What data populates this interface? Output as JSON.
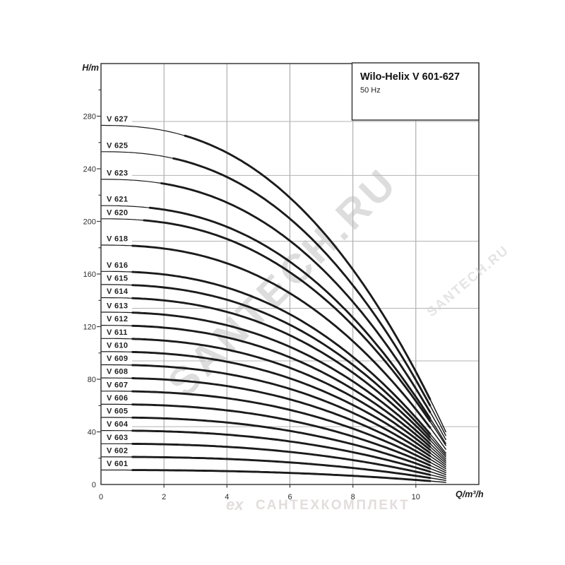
{
  "colors": {
    "curve": "#1b1b1b",
    "grid": "#9e9e9e",
    "reference_line": "#b3b3b3",
    "border": "#3a3a3a",
    "tick": "#3a3a3a",
    "watermark_large": "#bdbdbd",
    "watermark_small": "#cfcfcf",
    "watermark_bottom": "#ddd8d6"
  },
  "watermarks": {
    "large": "SANTECH.RU",
    "small": "SANTECH.RU",
    "bottom_logo": "ex",
    "bottom_text": "САНТЕХКОМПЛЕКТ"
  },
  "chart_data": {
    "type": "line",
    "title": "Wilo-Helix V 601-627",
    "subtitle": "50 Hz",
    "xlabel": "Q/m³/h",
    "ylabel": "H/m",
    "xlim": [
      0,
      12
    ],
    "ylim": [
      0,
      320
    ],
    "x_ticks": [
      0,
      2,
      4,
      6,
      8,
      10
    ],
    "y_ticks": [
      0,
      40,
      80,
      120,
      160,
      200,
      240,
      280
    ],
    "y_minor_tick_step": 20,
    "grid": "vertical gray gridlines at x ticks; thin gray horizontal reference lines at every labeled-with-leader curve",
    "legend_position": "labels at left end of each curve",
    "curve_model": {
      "q_cut": 11.7,
      "exp": 2.4,
      "q_end": 10.95,
      "q_thick_start_base": 1.0,
      "q_thick_end": 10.45
    },
    "series": [
      {
        "name": "V 627",
        "shutoff_head_m": 273,
        "reference_line": true,
        "points": [
          [
            0,
            273
          ],
          [
            2,
            269
          ],
          [
            4,
            252
          ],
          [
            6,
            218
          ],
          [
            8,
            163
          ],
          [
            10,
            86
          ],
          [
            10.95,
            40
          ]
        ]
      },
      {
        "name": "V 625",
        "shutoff_head_m": 253,
        "reference_line": false,
        "points": [
          [
            0,
            253
          ],
          [
            2,
            249
          ],
          [
            4,
            234
          ],
          [
            6,
            202
          ],
          [
            8,
            151
          ],
          [
            10,
            79
          ],
          [
            10.95,
            37
          ]
        ]
      },
      {
        "name": "V 623",
        "shutoff_head_m": 232,
        "reference_line": true,
        "points": [
          [
            0,
            232
          ],
          [
            2,
            229
          ],
          [
            4,
            214
          ],
          [
            6,
            185
          ],
          [
            8,
            139
          ],
          [
            10,
            73
          ],
          [
            10.95,
            34
          ]
        ]
      },
      {
        "name": "V 621",
        "shutoff_head_m": 212,
        "reference_line": false,
        "points": [
          [
            0,
            212
          ],
          [
            2,
            209
          ],
          [
            4,
            196
          ],
          [
            6,
            169
          ],
          [
            8,
            127
          ],
          [
            10,
            67
          ],
          [
            10.95,
            31
          ]
        ]
      },
      {
        "name": "V 620",
        "shutoff_head_m": 202,
        "reference_line": false,
        "points": [
          [
            0,
            202
          ],
          [
            2,
            199
          ],
          [
            4,
            187
          ],
          [
            6,
            161
          ],
          [
            8,
            121
          ],
          [
            10,
            63
          ],
          [
            10.95,
            30
          ]
        ]
      },
      {
        "name": "V 618",
        "shutoff_head_m": 182,
        "reference_line": true,
        "points": [
          [
            0,
            182
          ],
          [
            2,
            179
          ],
          [
            4,
            168
          ],
          [
            6,
            145
          ],
          [
            8,
            109
          ],
          [
            10,
            57
          ],
          [
            10.95,
            27
          ]
        ]
      },
      {
        "name": "V 616",
        "shutoff_head_m": 162,
        "reference_line": false,
        "points": [
          [
            0,
            162
          ],
          [
            2,
            160
          ],
          [
            4,
            150
          ],
          [
            6,
            129
          ],
          [
            8,
            97
          ],
          [
            10,
            51
          ],
          [
            10.95,
            24
          ]
        ]
      },
      {
        "name": "V 615",
        "shutoff_head_m": 152,
        "reference_line": false,
        "points": [
          [
            0,
            152
          ],
          [
            2,
            150
          ],
          [
            4,
            140
          ],
          [
            6,
            121
          ],
          [
            8,
            91
          ],
          [
            10,
            48
          ],
          [
            10.95,
            22
          ]
        ]
      },
      {
        "name": "V 614",
        "shutoff_head_m": 142,
        "reference_line": false,
        "points": [
          [
            0,
            142
          ],
          [
            2,
            140
          ],
          [
            4,
            131
          ],
          [
            6,
            113
          ],
          [
            8,
            85
          ],
          [
            10,
            45
          ],
          [
            10.95,
            21
          ]
        ]
      },
      {
        "name": "V 613",
        "shutoff_head_m": 131,
        "reference_line": true,
        "points": [
          [
            0,
            131
          ],
          [
            2,
            129
          ],
          [
            4,
            121
          ],
          [
            6,
            105
          ],
          [
            8,
            78
          ],
          [
            10,
            41
          ],
          [
            10.95,
            19
          ]
        ]
      },
      {
        "name": "V 612",
        "shutoff_head_m": 121,
        "reference_line": false,
        "points": [
          [
            0,
            121
          ],
          [
            2,
            119
          ],
          [
            4,
            112
          ],
          [
            6,
            97
          ],
          [
            8,
            72
          ],
          [
            10,
            38
          ],
          [
            10.95,
            18
          ]
        ]
      },
      {
        "name": "V 611",
        "shutoff_head_m": 111,
        "reference_line": false,
        "points": [
          [
            0,
            111
          ],
          [
            2,
            109
          ],
          [
            4,
            103
          ],
          [
            6,
            89
          ],
          [
            8,
            66
          ],
          [
            10,
            35
          ],
          [
            10.95,
            16
          ]
        ]
      },
      {
        "name": "V 610",
        "shutoff_head_m": 101,
        "reference_line": false,
        "points": [
          [
            0,
            101
          ],
          [
            2,
            100
          ],
          [
            4,
            93
          ],
          [
            6,
            81
          ],
          [
            8,
            60
          ],
          [
            10,
            32
          ],
          [
            10.95,
            15
          ]
        ]
      },
      {
        "name": "V 609",
        "shutoff_head_m": 91,
        "reference_line": true,
        "points": [
          [
            0,
            91
          ],
          [
            2,
            90
          ],
          [
            4,
            84
          ],
          [
            6,
            73
          ],
          [
            8,
            54
          ],
          [
            10,
            29
          ],
          [
            10.95,
            13
          ]
        ]
      },
      {
        "name": "V 608",
        "shutoff_head_m": 81,
        "reference_line": false,
        "points": [
          [
            0,
            81
          ],
          [
            2,
            80
          ],
          [
            4,
            75
          ],
          [
            6,
            65
          ],
          [
            8,
            48
          ],
          [
            10,
            25
          ],
          [
            10.95,
            12
          ]
        ]
      },
      {
        "name": "V 607",
        "shutoff_head_m": 71,
        "reference_line": false,
        "points": [
          [
            0,
            71
          ],
          [
            2,
            70
          ],
          [
            4,
            66
          ],
          [
            6,
            57
          ],
          [
            8,
            42
          ],
          [
            10,
            22
          ],
          [
            10.95,
            10
          ]
        ]
      },
      {
        "name": "V 606",
        "shutoff_head_m": 61,
        "reference_line": false,
        "points": [
          [
            0,
            61
          ],
          [
            2,
            60
          ],
          [
            4,
            56
          ],
          [
            6,
            49
          ],
          [
            8,
            37
          ],
          [
            10,
            19
          ],
          [
            10.95,
            9
          ]
        ]
      },
      {
        "name": "V 605",
        "shutoff_head_m": 51,
        "reference_line": false,
        "points": [
          [
            0,
            51
          ],
          [
            2,
            50
          ],
          [
            4,
            47
          ],
          [
            6,
            41
          ],
          [
            8,
            31
          ],
          [
            10,
            16
          ],
          [
            10.95,
            7
          ]
        ]
      },
      {
        "name": "V 604",
        "shutoff_head_m": 41,
        "reference_line": true,
        "points": [
          [
            0,
            41
          ],
          [
            2,
            40
          ],
          [
            4,
            38
          ],
          [
            6,
            33
          ],
          [
            8,
            25
          ],
          [
            10,
            13
          ],
          [
            10.95,
            6
          ]
        ]
      },
      {
        "name": "V 603",
        "shutoff_head_m": 31,
        "reference_line": false,
        "points": [
          [
            0,
            31
          ],
          [
            2,
            31
          ],
          [
            4,
            29
          ],
          [
            6,
            25
          ],
          [
            8,
            19
          ],
          [
            10,
            10
          ],
          [
            10.95,
            5
          ]
        ]
      },
      {
        "name": "V 602",
        "shutoff_head_m": 21,
        "reference_line": false,
        "points": [
          [
            0,
            21
          ],
          [
            2,
            21
          ],
          [
            4,
            19
          ],
          [
            6,
            17
          ],
          [
            8,
            13
          ],
          [
            10,
            7
          ],
          [
            10.95,
            3
          ]
        ]
      },
      {
        "name": "V 601",
        "shutoff_head_m": 11,
        "reference_line": false,
        "points": [
          [
            0,
            11
          ],
          [
            2,
            11
          ],
          [
            4,
            10
          ],
          [
            6,
            9
          ],
          [
            8,
            7
          ],
          [
            10,
            3
          ],
          [
            10.95,
            2
          ]
        ]
      }
    ]
  }
}
